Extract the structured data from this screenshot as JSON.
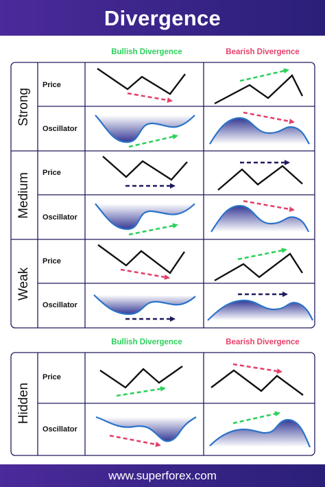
{
  "header": {
    "title": "Divergence"
  },
  "footer": {
    "url": "www.superforex.com"
  },
  "columns": {
    "bullish": "Bullish Divergence",
    "bearish": "Bearish Divergence"
  },
  "rows": {
    "price": "Price",
    "oscillator": "Oscillator"
  },
  "sections": [
    {
      "id": "strong",
      "label": "Strong"
    },
    {
      "id": "medium",
      "label": "Medium"
    },
    {
      "id": "weak",
      "label": "Weak"
    },
    {
      "id": "hidden",
      "label": "Hidden"
    }
  ],
  "colors": {
    "bullish_arrow": "#2bd15a",
    "bearish_arrow": "#e4406a",
    "neutral_arrow": "#1f1a5e",
    "line": "#111111",
    "oscillator_line": "#2a72c9",
    "oscillator_fill": "#2a2f8f",
    "grid": "#1f1a5e"
  }
}
